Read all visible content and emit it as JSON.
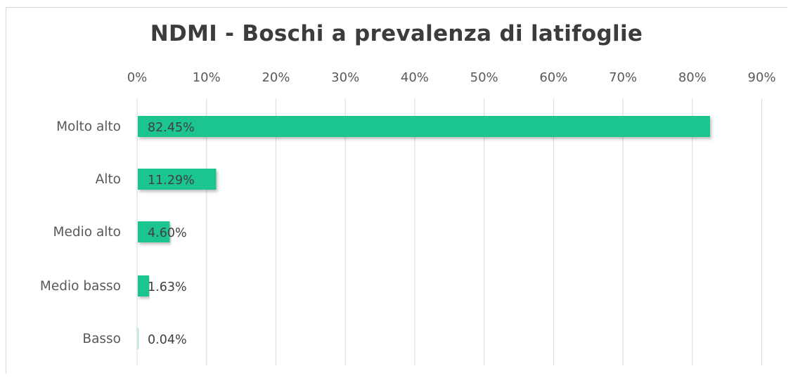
{
  "chart_data": {
    "type": "bar",
    "orientation": "horizontal",
    "title": "NDMI - Boschi a prevalenza di latifoglie",
    "xlabel": "",
    "ylabel": "",
    "categories": [
      "Molto alto",
      "Alto",
      "Medio alto",
      "Medio basso",
      "Basso"
    ],
    "values": [
      82.45,
      11.29,
      4.6,
      1.63,
      0.04
    ],
    "data_labels": [
      "82.45%",
      "11.29%",
      "4.60%",
      "1.63%",
      "0.04%"
    ],
    "x_ticks": [
      "0%",
      "10%",
      "20%",
      "30%",
      "40%",
      "50%",
      "60%",
      "70%",
      "80%",
      "90%"
    ],
    "xlim": [
      0,
      90
    ],
    "grid": true,
    "legend": "none",
    "axis_position": "top",
    "bar_color": "#1fc48f"
  }
}
